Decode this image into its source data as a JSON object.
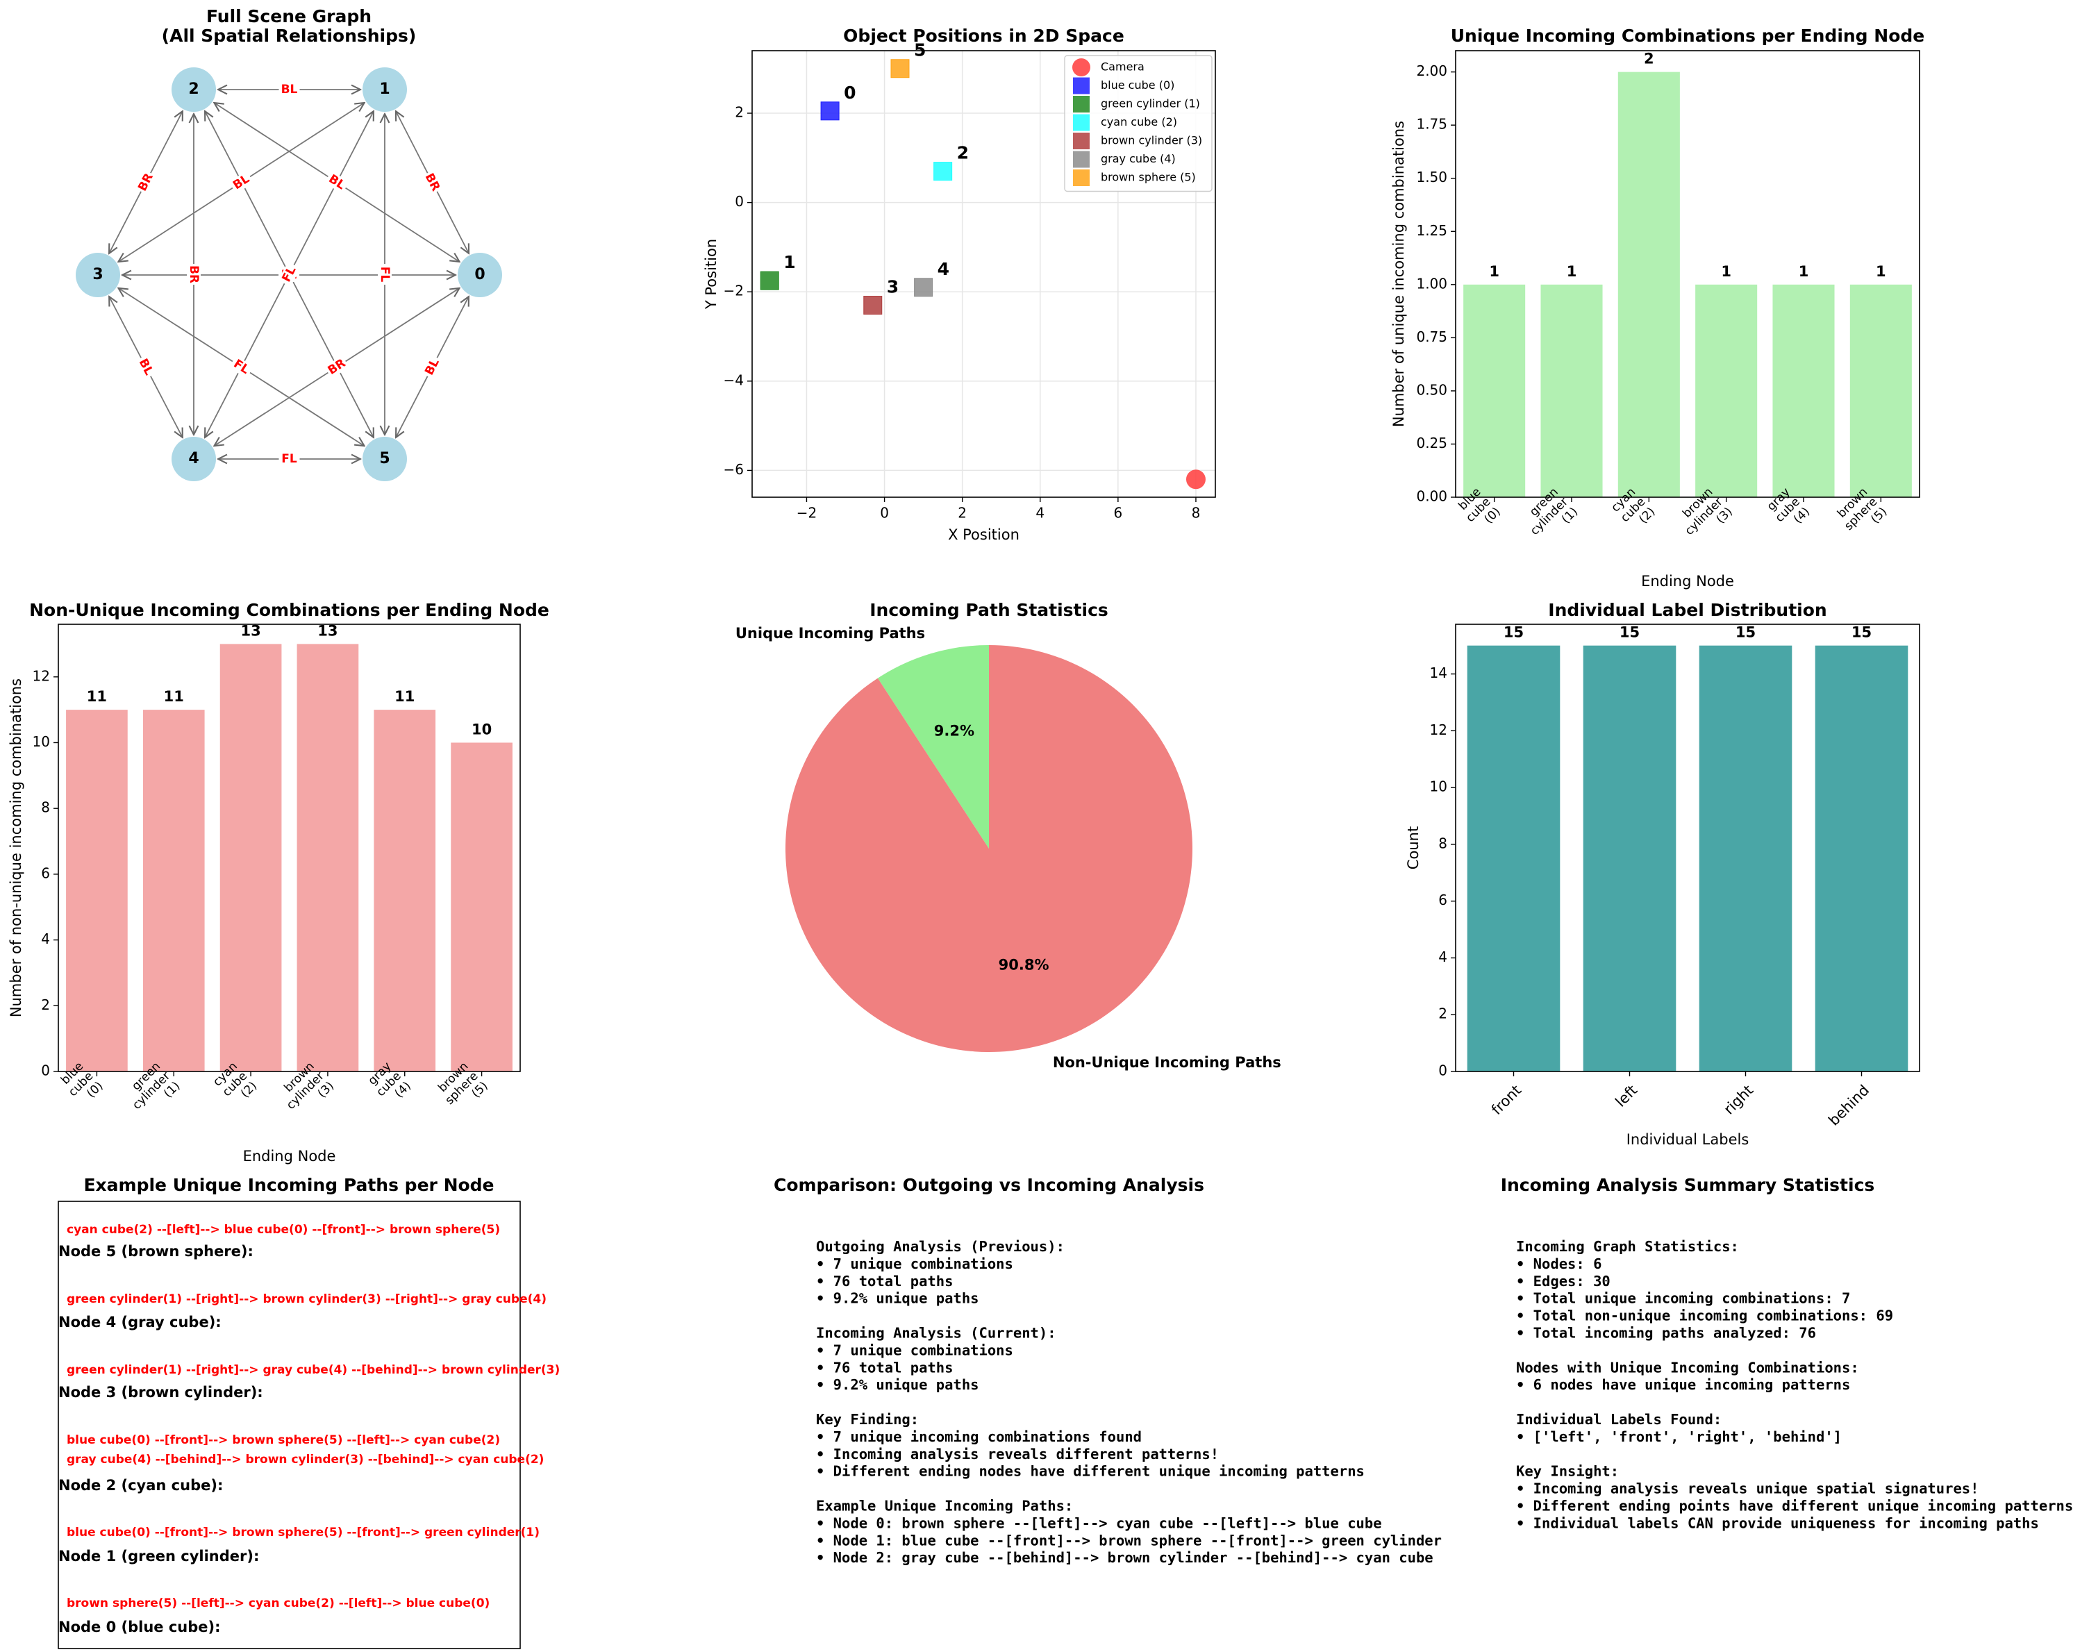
{
  "chart_data": [
    {
      "type": "graph",
      "title": "Full Scene Graph\n(All Spatial Relationships)",
      "nodes": [
        "0",
        "1",
        "2",
        "3",
        "4",
        "5"
      ],
      "edges": [
        {
          "from": "2",
          "to": "1",
          "label": "BL"
        },
        {
          "from": "2",
          "to": "3",
          "label": "BR"
        },
        {
          "from": "3",
          "to": "1",
          "label": "BL"
        },
        {
          "from": "2",
          "to": "0",
          "label": "BL"
        },
        {
          "from": "1",
          "to": "0",
          "label": "BR"
        },
        {
          "from": "3",
          "to": "0",
          "label": "FL"
        },
        {
          "from": "2",
          "to": "4",
          "label": "BR"
        },
        {
          "from": "3",
          "to": "5",
          "label": "FL"
        },
        {
          "from": "1",
          "to": "4",
          "label": "FL"
        },
        {
          "from": "1",
          "to": "5",
          "label": "FL"
        },
        {
          "from": "3",
          "to": "4",
          "label": "BL"
        },
        {
          "from": "4",
          "to": "0",
          "label": "BR"
        },
        {
          "from": "5",
          "to": "0",
          "label": "BL"
        },
        {
          "from": "4",
          "to": "5",
          "label": "FL"
        },
        {
          "from": "2",
          "to": "5",
          "label": ""
        }
      ]
    },
    {
      "type": "scatter",
      "title": "Object Positions in 2D Space",
      "xlabel": "X Position",
      "ylabel": "Y Position",
      "xlim": [
        -3.4,
        8.5
      ],
      "ylim": [
        -6.6,
        3.4
      ],
      "xticks": [
        -2,
        0,
        2,
        4,
        6,
        8
      ],
      "yticks": [
        -6,
        -4,
        -2,
        0,
        2
      ],
      "grid": true,
      "legend_position": "top-right",
      "points": [
        {
          "label": "Camera",
          "id": "",
          "x": 8.0,
          "y": -6.2,
          "color": "#ff3b3b",
          "marker": "circle"
        },
        {
          "label": "blue cube (0)",
          "id": "0",
          "x": -1.4,
          "y": 2.05,
          "color": "#1f1fff",
          "marker": "square"
        },
        {
          "label": "green cylinder (1)",
          "id": "1",
          "x": -2.95,
          "y": -1.75,
          "color": "#228b22",
          "marker": "square"
        },
        {
          "label": "cyan cube (2)",
          "id": "2",
          "x": 1.5,
          "y": 0.7,
          "color": "#20ffff",
          "marker": "square"
        },
        {
          "label": "brown cylinder (3)",
          "id": "3",
          "x": -0.3,
          "y": -2.3,
          "color": "#b04040",
          "marker": "square"
        },
        {
          "label": "gray cube (4)",
          "id": "4",
          "x": 1.0,
          "y": -1.9,
          "color": "#8c8c8c",
          "marker": "square"
        },
        {
          "label": "brown sphere (5)",
          "id": "5",
          "x": 0.4,
          "y": 3.0,
          "color": "#ffa519",
          "marker": "square"
        }
      ]
    },
    {
      "type": "bar",
      "title": "Unique Incoming Combinations per Ending Node",
      "xlabel": "Ending Node",
      "ylabel": "Number of unique incoming combinations",
      "categories": [
        "blue\ncube\n(0)",
        "green\ncylinder\n(1)",
        "cyan\ncube\n(2)",
        "brown\ncylinder\n(3)",
        "gray\ncube\n(4)",
        "brown\nsphere\n(5)"
      ],
      "values": [
        1,
        1,
        2,
        1,
        1,
        1
      ],
      "ylim": [
        0,
        2.1
      ],
      "yticks": [
        0.0,
        0.25,
        0.5,
        0.75,
        1.0,
        1.25,
        1.5,
        1.75,
        2.0
      ],
      "ytick_labels": [
        "0.00",
        "0.25",
        "0.50",
        "0.75",
        "1.00",
        "1.25",
        "1.50",
        "1.75",
        "2.00"
      ],
      "color": "#b2f0b2"
    },
    {
      "type": "bar",
      "title": "Non-Unique Incoming Combinations per Ending Node",
      "xlabel": "Ending Node",
      "ylabel": "Number of non-unique incoming combinations",
      "categories": [
        "blue\ncube\n(0)",
        "green\ncylinder\n(1)",
        "cyan\ncube\n(2)",
        "brown\ncylinder\n(3)",
        "gray\ncube\n(4)",
        "brown\nsphere\n(5)"
      ],
      "values": [
        11,
        11,
        13,
        13,
        11,
        10
      ],
      "ylim": [
        0,
        13.6
      ],
      "yticks": [
        0,
        2,
        4,
        6,
        8,
        10,
        12
      ],
      "color": "#f4a7a7"
    },
    {
      "type": "pie",
      "title": "Incoming Path Statistics",
      "slices": [
        {
          "label": "Unique Incoming Paths",
          "value": 9.2,
          "pct": "9.2%",
          "color": "#90ee90"
        },
        {
          "label": "Non-Unique Incoming Paths",
          "value": 90.8,
          "pct": "90.8%",
          "color": "#f08080"
        }
      ]
    },
    {
      "type": "bar",
      "title": "Individual Label Distribution",
      "xlabel": "Individual Labels",
      "ylabel": "Count",
      "categories": [
        "front",
        "left",
        "right",
        "behind"
      ],
      "values": [
        15,
        15,
        15,
        15
      ],
      "ylim": [
        0,
        15.75
      ],
      "yticks": [
        0,
        2,
        4,
        6,
        8,
        10,
        12,
        14
      ],
      "color": "#4aa6a6"
    }
  ],
  "examples_panel": {
    "title": "Example Unique Incoming Paths per Node",
    "entries": [
      {
        "path": "cyan cube(2) --[left]--> blue cube(0) --[front]--> brown sphere(5)",
        "node": "Node 5 (brown sphere):"
      },
      {
        "path": "green cylinder(1) --[right]--> brown cylinder(3) --[right]--> gray cube(4)",
        "node": "Node 4 (gray cube):"
      },
      {
        "path": "green cylinder(1) --[right]--> gray cube(4) --[behind]--> brown cylinder(3)",
        "node": "Node 3 (brown cylinder):"
      },
      {
        "path": "blue cube(0) --[front]--> brown sphere(5) --[left]--> cyan cube(2)",
        "path2": "gray cube(4) --[behind]--> brown cylinder(3) --[behind]--> cyan cube(2)",
        "node": "Node 2 (cyan cube):"
      },
      {
        "path": "blue cube(0) --[front]--> brown sphere(5) --[front]--> green cylinder(1)",
        "node": "Node 1 (green cylinder):"
      },
      {
        "path": "brown sphere(5) --[left]--> cyan cube(2) --[left]--> blue cube(0)",
        "node": "Node 0 (blue cube):"
      }
    ]
  },
  "comparison_panel": {
    "title": "Comparison: Outgoing vs Incoming Analysis",
    "lines": [
      "Outgoing Analysis (Previous):",
      "• 7 unique combinations",
      "• 76 total paths",
      "• 9.2% unique paths",
      "",
      "Incoming Analysis (Current):",
      "• 7 unique combinations",
      "• 76 total paths",
      "• 9.2% unique paths",
      "",
      "Key Finding:",
      "• 7 unique incoming combinations found",
      "• Incoming analysis reveals different patterns!",
      "• Different ending nodes have different unique incoming patterns",
      "",
      "Example Unique Incoming Paths:",
      "• Node 0: brown sphere --[left]--> cyan cube --[left]--> blue cube",
      "• Node 1: blue cube --[front]--> brown sphere --[front]--> green cylinder",
      "• Node 2: gray cube --[behind]--> brown cylinder --[behind]--> cyan cube"
    ]
  },
  "summary_panel": {
    "title": "Incoming Analysis Summary Statistics",
    "lines": [
      "Incoming Graph Statistics:",
      "• Nodes: 6",
      "• Edges: 30",
      "• Total unique incoming combinations: 7",
      "• Total non-unique incoming combinations: 69",
      "• Total incoming paths analyzed: 76",
      "",
      "Nodes with Unique Incoming Combinations:",
      "• 6 nodes have unique incoming patterns",
      "",
      "Individual Labels Found:",
      "• ['left', 'front', 'right', 'behind']",
      "",
      "Key Insight:",
      "• Incoming analysis reveals unique spatial signatures!",
      "• Different ending points have different unique incoming patterns",
      "• Individual labels CAN provide uniqueness for incoming paths"
    ]
  }
}
